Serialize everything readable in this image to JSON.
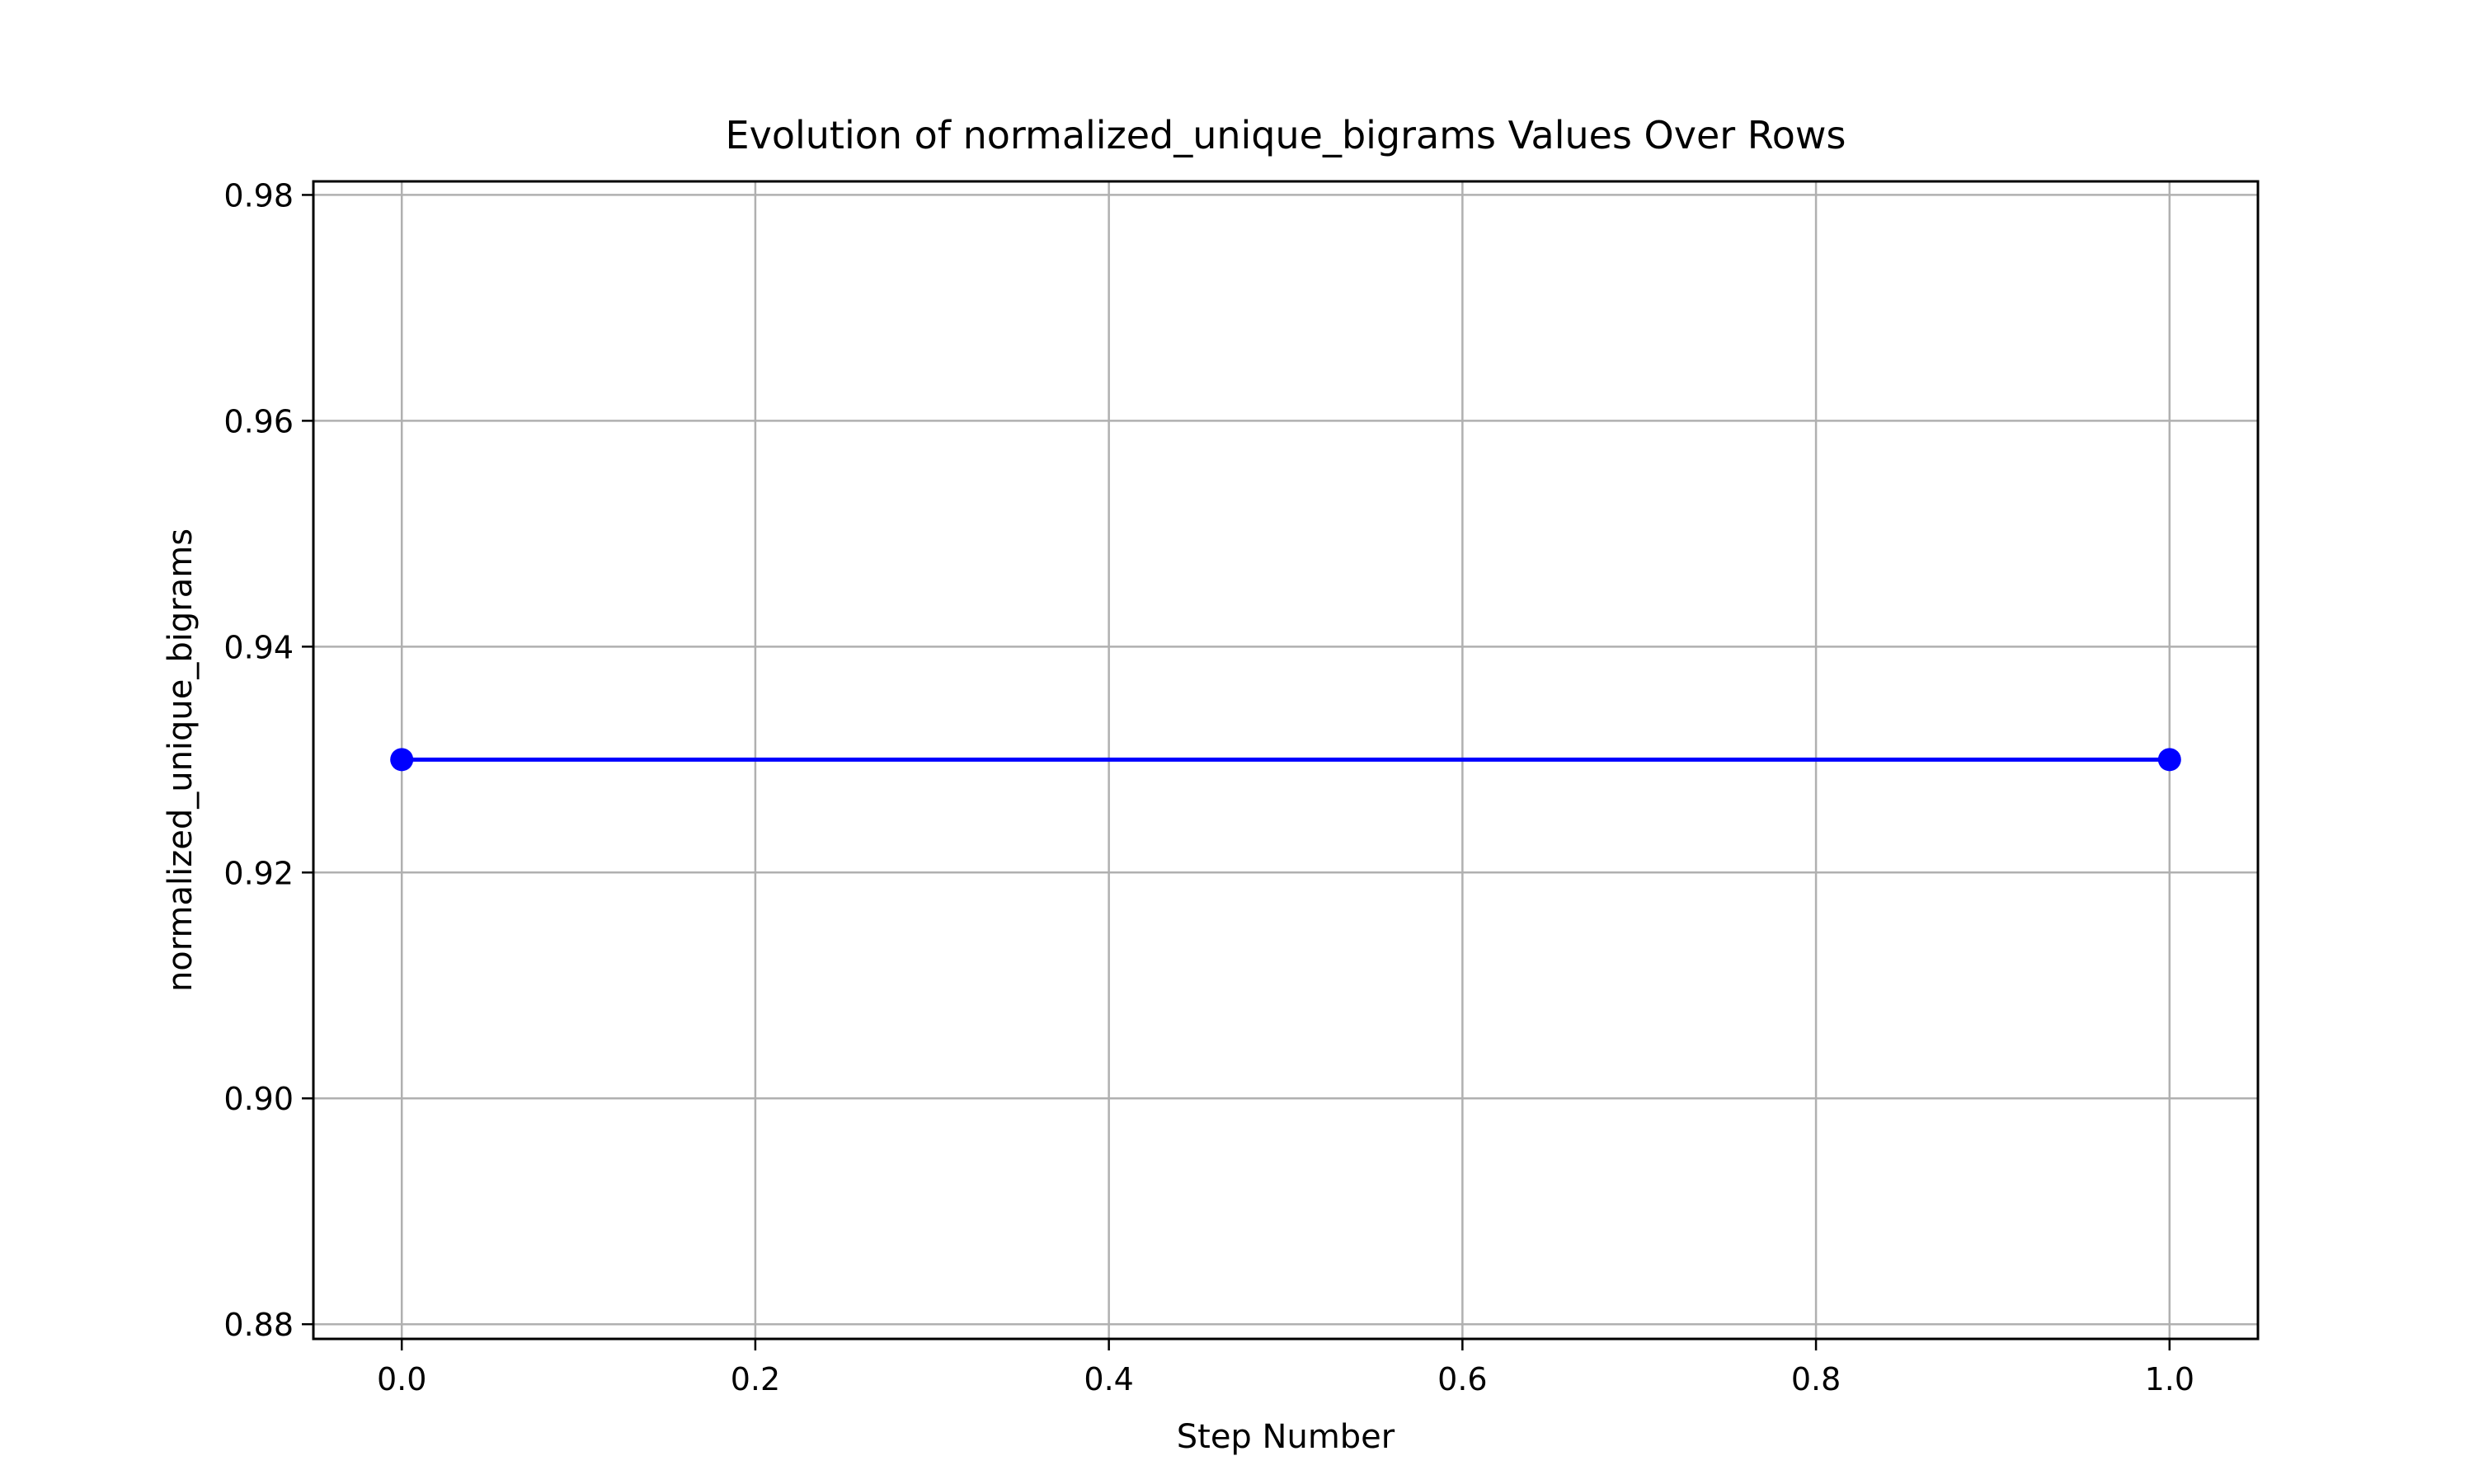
{
  "colors": {
    "series_line": "#0000ff",
    "grid": "#b0b0b0",
    "axes": "#000000",
    "background": "#ffffff"
  },
  "chart_data": {
    "type": "line",
    "title": "Evolution of normalized_unique_bigrams Values Over Rows",
    "xlabel": "Step Number",
    "ylabel": "normalized_unique_bigrams",
    "x": [
      0.0,
      1.0
    ],
    "series": [
      {
        "values": [
          0.93,
          0.93
        ],
        "color": "#0000ff",
        "marker": "circle"
      }
    ],
    "xlim": [
      -0.05,
      1.05
    ],
    "ylim": [
      0.8787,
      0.9812
    ],
    "xticks": [
      0.0,
      0.2,
      0.4,
      0.6,
      0.8,
      1.0
    ],
    "xtick_labels": [
      "0.0",
      "0.2",
      "0.4",
      "0.6",
      "0.8",
      "1.0"
    ],
    "yticks": [
      0.88,
      0.9,
      0.92,
      0.94,
      0.96,
      0.98
    ],
    "ytick_labels": [
      "0.88",
      "0.90",
      "0.92",
      "0.94",
      "0.96",
      "0.98"
    ],
    "grid": true,
    "legend": "none"
  }
}
